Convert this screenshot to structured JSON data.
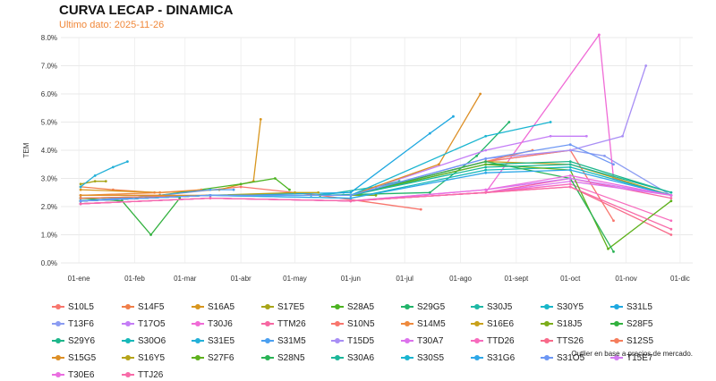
{
  "header": {
    "title": "CURVA LECAP - DINAMICA",
    "subtitle": "Ultimo dato: 2025-11-26"
  },
  "note": "Outlier en base a precios de mercado.",
  "colors": {
    "accent": "#f0883a"
  },
  "chart_data": {
    "type": "line",
    "title": "CURVA LECAP - DINAMICA",
    "subtitle": "Ultimo dato: 2025-11-26",
    "ylabel": "TEM",
    "xlabel": "",
    "ylim": [
      0.0,
      0.08
    ],
    "yticks": [
      "0.0%",
      "1.0%",
      "2.0%",
      "3.0%",
      "4.0%",
      "5.0%",
      "6.0%",
      "7.0%",
      "8.0%"
    ],
    "yticks_values": [
      0.0,
      0.01,
      0.02,
      0.03,
      0.04,
      0.05,
      0.06,
      0.07,
      0.08
    ],
    "xlim": [
      "2024-12-22",
      "2025-12-08"
    ],
    "xticks": [
      "01-ene",
      "01-feb",
      "01-mar",
      "01-abr",
      "01-may",
      "01-jun",
      "01-jul",
      "01-ago",
      "01-sept",
      "01-oct",
      "01-nov",
      "01-dic"
    ],
    "xticks_dates": [
      "2025-01-01",
      "2025-02-01",
      "2025-03-01",
      "2025-04-01",
      "2025-05-01",
      "2025-06-01",
      "2025-07-01",
      "2025-08-01",
      "2025-09-01",
      "2025-10-01",
      "2025-11-01",
      "2025-12-01"
    ],
    "grid": true,
    "legend_position": "bottom",
    "series": [
      {
        "name": "S10L5",
        "color": "#f8766d",
        "x": [
          "2025-01-02",
          "2025-02-15",
          "2025-04-01",
          "2025-05-15",
          "2025-07-10"
        ],
        "y": [
          0.024,
          0.024,
          0.027,
          0.024,
          0.019
        ]
      },
      {
        "name": "S14F5",
        "color": "#f07f4a",
        "x": [
          "2025-01-02",
          "2025-01-20",
          "2025-02-12"
        ],
        "y": [
          0.027,
          0.026,
          0.025
        ]
      },
      {
        "name": "S16A5",
        "color": "#d8961e",
        "x": [
          "2025-01-02",
          "2025-02-15",
          "2025-03-20",
          "2025-04-08",
          "2025-04-12"
        ],
        "y": [
          0.026,
          0.025,
          0.026,
          0.029,
          0.051
        ]
      },
      {
        "name": "S17E5",
        "color": "#a8a518",
        "x": [
          "2025-01-02",
          "2025-01-10",
          "2025-01-16"
        ],
        "y": [
          0.028,
          0.029,
          0.029
        ]
      },
      {
        "name": "S28A5",
        "color": "#4cb321",
        "x": [
          "2025-01-02",
          "2025-02-15",
          "2025-04-01",
          "2025-04-20",
          "2025-04-28"
        ],
        "y": [
          0.022,
          0.024,
          0.028,
          0.03,
          0.026
        ]
      },
      {
        "name": "S29G5",
        "color": "#22b46a",
        "x": [
          "2025-01-02",
          "2025-03-15",
          "2025-05-15",
          "2025-07-15",
          "2025-08-10",
          "2025-08-28"
        ],
        "y": [
          0.023,
          0.024,
          0.024,
          0.025,
          0.038,
          0.05
        ]
      },
      {
        "name": "S30J5",
        "color": "#1fb8a5",
        "x": [
          "2025-01-02",
          "2025-03-15",
          "2025-05-15",
          "2025-06-15",
          "2025-06-28"
        ],
        "y": [
          0.023,
          0.024,
          0.024,
          0.027,
          0.029
        ]
      },
      {
        "name": "S30Y5",
        "color": "#18b6c8",
        "x": [
          "2025-01-02",
          "2025-03-15",
          "2025-05-10",
          "2025-05-28"
        ],
        "y": [
          0.022,
          0.024,
          0.024,
          0.025
        ]
      },
      {
        "name": "S31L5",
        "color": "#1fa8e0",
        "x": [
          "2025-01-02",
          "2025-03-15",
          "2025-06-01",
          "2025-07-15",
          "2025-07-28"
        ],
        "y": [
          0.022,
          0.024,
          0.025,
          0.046,
          0.052
        ]
      },
      {
        "name": "T13F6",
        "color": "#8b9cf2",
        "x": [
          "2025-01-02",
          "2025-03-15",
          "2025-06-01",
          "2025-08-15",
          "2025-10-01",
          "2025-10-20",
          "2025-11-26"
        ],
        "y": [
          0.022,
          0.024,
          0.024,
          0.036,
          0.04,
          0.038,
          0.024
        ]
      },
      {
        "name": "T17O5",
        "color": "#c47df6",
        "x": [
          "2025-01-02",
          "2025-03-15",
          "2025-06-01",
          "2025-08-15",
          "2025-09-20",
          "2025-10-10"
        ],
        "y": [
          0.022,
          0.024,
          0.024,
          0.04,
          0.045,
          0.045
        ]
      },
      {
        "name": "T30J6",
        "color": "#f06bd6",
        "x": [
          "2025-01-02",
          "2025-03-15",
          "2025-06-01",
          "2025-08-15",
          "2025-10-17",
          "2025-10-25",
          "2025-11-26"
        ],
        "y": [
          0.021,
          0.023,
          0.022,
          0.025,
          0.081,
          0.03,
          0.024
        ]
      },
      {
        "name": "TTM26",
        "color": "#f667a2",
        "x": [
          "2025-01-02",
          "2025-03-15",
          "2025-06-01",
          "2025-08-15",
          "2025-10-01",
          "2025-11-26"
        ],
        "y": [
          0.021,
          0.023,
          0.022,
          0.025,
          0.03,
          0.023
        ]
      },
      {
        "name": "S10N5",
        "color": "#f8766d",
        "x": [
          "2025-01-02",
          "2025-03-15",
          "2025-06-01",
          "2025-08-15",
          "2025-10-01",
          "2025-10-25"
        ],
        "y": [
          0.023,
          0.024,
          0.024,
          0.036,
          0.04,
          0.015
        ]
      },
      {
        "name": "S14M5",
        "color": "#ee8a3d",
        "x": [
          "2025-01-02",
          "2025-02-15",
          "2025-03-10"
        ],
        "y": [
          0.024,
          0.025,
          0.026
        ]
      },
      {
        "name": "S16E6",
        "color": "#c9a11b",
        "x": [
          "2025-01-02",
          "2025-03-15",
          "2025-06-01",
          "2025-08-15",
          "2025-10-01",
          "2025-11-26"
        ],
        "y": [
          0.022,
          0.024,
          0.024,
          0.036,
          0.035,
          0.024
        ]
      },
      {
        "name": "S18J5",
        "color": "#7cad1a",
        "x": [
          "2025-01-02",
          "2025-03-15",
          "2025-05-15",
          "2025-06-15"
        ],
        "y": [
          0.022,
          0.024,
          0.024,
          0.024
        ]
      },
      {
        "name": "S28F5",
        "color": "#32b13f",
        "x": [
          "2025-01-02",
          "2025-01-25",
          "2025-02-10",
          "2025-02-26"
        ],
        "y": [
          0.023,
          0.022,
          0.01,
          0.023
        ]
      },
      {
        "name": "S29Y6",
        "color": "#1db68a",
        "x": [
          "2025-01-02",
          "2025-03-15",
          "2025-06-01",
          "2025-08-15",
          "2025-10-01",
          "2025-11-26"
        ],
        "y": [
          0.022,
          0.024,
          0.024,
          0.035,
          0.036,
          0.025
        ]
      },
      {
        "name": "S30O6",
        "color": "#16b8b8",
        "x": [
          "2025-01-02",
          "2025-03-15",
          "2025-06-01",
          "2025-08-15",
          "2025-10-01",
          "2025-11-26"
        ],
        "y": [
          0.022,
          0.024,
          0.023,
          0.033,
          0.034,
          0.024
        ]
      },
      {
        "name": "S31E5",
        "color": "#23b0d8",
        "x": [
          "2025-01-02",
          "2025-01-10",
          "2025-01-20",
          "2025-01-28"
        ],
        "y": [
          0.027,
          0.031,
          0.034,
          0.036
        ]
      },
      {
        "name": "S31M5",
        "color": "#4a9ff0",
        "x": [
          "2025-01-02",
          "2025-02-15",
          "2025-03-15",
          "2025-03-28"
        ],
        "y": [
          0.022,
          0.024,
          0.026,
          0.026
        ]
      },
      {
        "name": "T15D5",
        "color": "#a88ef5",
        "x": [
          "2025-01-02",
          "2025-03-15",
          "2025-06-01",
          "2025-08-15",
          "2025-10-01",
          "2025-10-30",
          "2025-11-12"
        ],
        "y": [
          0.022,
          0.024,
          0.024,
          0.037,
          0.04,
          0.045,
          0.07
        ]
      },
      {
        "name": "T30A7",
        "color": "#dc72ec",
        "x": [
          "2025-01-02",
          "2025-03-15",
          "2025-06-01",
          "2025-08-15",
          "2025-10-01",
          "2025-11-26"
        ],
        "y": [
          0.021,
          0.023,
          0.022,
          0.025,
          0.029,
          0.024
        ]
      },
      {
        "name": "TTD26",
        "color": "#f76bbd",
        "x": [
          "2025-01-02",
          "2025-03-15",
          "2025-06-01",
          "2025-08-15",
          "2025-10-01",
          "2025-11-26"
        ],
        "y": [
          0.021,
          0.023,
          0.022,
          0.025,
          0.028,
          0.015
        ]
      },
      {
        "name": "TTS26",
        "color": "#f86a8a",
        "x": [
          "2025-01-02",
          "2025-03-15",
          "2025-06-01",
          "2025-08-15",
          "2025-10-01",
          "2025-11-26"
        ],
        "y": [
          0.021,
          0.023,
          0.022,
          0.025,
          0.027,
          0.01
        ]
      },
      {
        "name": "S12S5",
        "color": "#f57d5c",
        "x": [
          "2025-01-02",
          "2025-03-15",
          "2025-06-01",
          "2025-08-15",
          "2025-09-10"
        ],
        "y": [
          0.023,
          0.024,
          0.024,
          0.036,
          0.04
        ]
      },
      {
        "name": "S15G5",
        "color": "#dd8f26",
        "x": [
          "2025-01-02",
          "2025-03-15",
          "2025-06-01",
          "2025-07-20",
          "2025-08-12"
        ],
        "y": [
          0.024,
          0.024,
          0.024,
          0.035,
          0.06
        ]
      },
      {
        "name": "S16Y5",
        "color": "#b6a41a",
        "x": [
          "2025-01-02",
          "2025-03-15",
          "2025-05-01",
          "2025-05-14"
        ],
        "y": [
          0.022,
          0.024,
          0.025,
          0.025
        ]
      },
      {
        "name": "S27F6",
        "color": "#5fb11d",
        "x": [
          "2025-01-02",
          "2025-03-15",
          "2025-06-01",
          "2025-08-15",
          "2025-10-01",
          "2025-10-22",
          "2025-11-26"
        ],
        "y": [
          0.022,
          0.024,
          0.024,
          0.035,
          0.033,
          0.005,
          0.022
        ]
      },
      {
        "name": "S28N5",
        "color": "#2ab355",
        "x": [
          "2025-01-02",
          "2025-03-15",
          "2025-06-01",
          "2025-08-15",
          "2025-10-01",
          "2025-10-25"
        ],
        "y": [
          0.022,
          0.024,
          0.024,
          0.036,
          0.03,
          0.004
        ]
      },
      {
        "name": "S30A6",
        "color": "#1cb79a",
        "x": [
          "2025-01-02",
          "2025-03-15",
          "2025-06-01",
          "2025-08-15",
          "2025-10-01",
          "2025-11-26"
        ],
        "y": [
          0.022,
          0.024,
          0.024,
          0.034,
          0.035,
          0.025
        ]
      },
      {
        "name": "S30S5",
        "color": "#1ab5d0",
        "x": [
          "2025-01-02",
          "2025-03-15",
          "2025-06-01",
          "2025-08-15",
          "2025-09-20"
        ],
        "y": [
          0.022,
          0.024,
          0.024,
          0.045,
          0.05
        ]
      },
      {
        "name": "S31G6",
        "color": "#2fa8e8",
        "x": [
          "2025-01-02",
          "2025-03-15",
          "2025-06-01",
          "2025-08-15",
          "2025-10-01",
          "2025-11-26"
        ],
        "y": [
          0.022,
          0.024,
          0.023,
          0.032,
          0.033,
          0.024
        ]
      },
      {
        "name": "S31O5",
        "color": "#6d97f4",
        "x": [
          "2025-01-02",
          "2025-03-15",
          "2025-06-01",
          "2025-08-15",
          "2025-10-01",
          "2025-10-25"
        ],
        "y": [
          0.022,
          0.024,
          0.024,
          0.037,
          0.042,
          0.035
        ]
      },
      {
        "name": "T15E7",
        "color": "#d37bf2",
        "x": [
          "2025-01-02",
          "2025-03-15",
          "2025-06-01",
          "2025-08-15",
          "2025-10-01",
          "2025-11-26"
        ],
        "y": [
          0.021,
          0.023,
          0.022,
          0.026,
          0.03,
          0.024
        ]
      },
      {
        "name": "T30E6",
        "color": "#ea6ee0",
        "x": [
          "2025-01-02",
          "2025-03-15",
          "2025-06-01",
          "2025-08-15",
          "2025-10-01",
          "2025-11-26"
        ],
        "y": [
          0.021,
          0.023,
          0.022,
          0.026,
          0.031,
          0.024
        ]
      },
      {
        "name": "TTJ26",
        "color": "#f86ba8",
        "x": [
          "2025-01-02",
          "2025-03-15",
          "2025-06-01",
          "2025-08-15",
          "2025-10-01",
          "2025-11-26"
        ],
        "y": [
          0.021,
          0.023,
          0.022,
          0.025,
          0.027,
          0.012
        ]
      }
    ]
  }
}
